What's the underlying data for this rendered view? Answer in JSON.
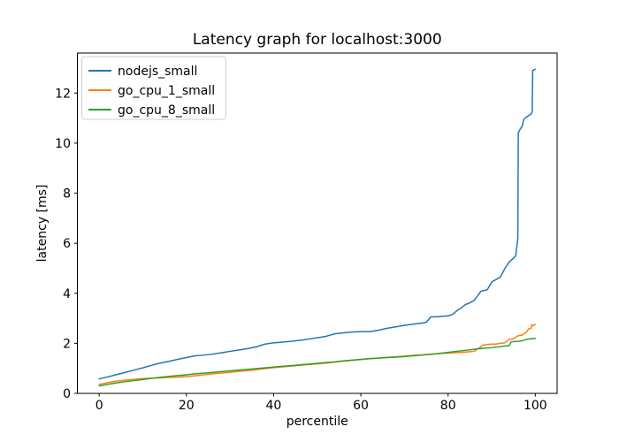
{
  "chart_data": {
    "type": "line",
    "title": "Latency graph for localhost:3000",
    "xlabel": "percentile",
    "ylabel": "latency [ms]",
    "xlim": [
      -5,
      105
    ],
    "ylim": [
      0,
      13.6
    ],
    "xticks": [
      0,
      20,
      40,
      60,
      80,
      100
    ],
    "yticks": [
      0,
      2,
      4,
      6,
      8,
      10,
      12
    ],
    "grid": false,
    "legend_position": "upper left",
    "legend_border_color": "#cccccc",
    "background_color": "#ffffff",
    "axis_color": "#000000",
    "series": [
      {
        "name": "nodejs_small",
        "color": "#1f77b4",
        "points": [
          [
            0,
            0.58
          ],
          [
            2,
            0.66
          ],
          [
            4,
            0.75
          ],
          [
            6,
            0.84
          ],
          [
            8,
            0.93
          ],
          [
            10,
            1.02
          ],
          [
            12,
            1.12
          ],
          [
            14,
            1.21
          ],
          [
            16,
            1.28
          ],
          [
            18,
            1.36
          ],
          [
            20,
            1.43
          ],
          [
            22,
            1.5
          ],
          [
            24,
            1.53
          ],
          [
            26,
            1.57
          ],
          [
            28,
            1.62
          ],
          [
            30,
            1.68
          ],
          [
            32,
            1.73
          ],
          [
            34,
            1.79
          ],
          [
            36,
            1.86
          ],
          [
            38,
            1.97
          ],
          [
            40,
            2.02
          ],
          [
            42,
            2.05
          ],
          [
            44,
            2.08
          ],
          [
            46,
            2.12
          ],
          [
            48,
            2.17
          ],
          [
            50,
            2.22
          ],
          [
            52,
            2.28
          ],
          [
            54,
            2.38
          ],
          [
            56,
            2.42
          ],
          [
            58,
            2.45
          ],
          [
            60,
            2.47
          ],
          [
            62,
            2.47
          ],
          [
            64,
            2.52
          ],
          [
            66,
            2.6
          ],
          [
            68,
            2.66
          ],
          [
            70,
            2.72
          ],
          [
            72,
            2.77
          ],
          [
            74,
            2.81
          ],
          [
            75,
            2.84
          ],
          [
            76,
            3.05
          ],
          [
            78,
            3.07
          ],
          [
            80,
            3.1
          ],
          [
            81,
            3.15
          ],
          [
            82,
            3.3
          ],
          [
            83,
            3.42
          ],
          [
            84,
            3.55
          ],
          [
            85,
            3.62
          ],
          [
            86,
            3.72
          ],
          [
            87,
            3.95
          ],
          [
            87.5,
            4.08
          ],
          [
            89,
            4.14
          ],
          [
            90,
            4.45
          ],
          [
            91,
            4.55
          ],
          [
            92,
            4.65
          ],
          [
            93,
            4.98
          ],
          [
            94,
            5.25
          ],
          [
            95,
            5.4
          ],
          [
            95.5,
            5.5
          ],
          [
            96,
            6.2
          ],
          [
            96.1,
            10.4
          ],
          [
            96.5,
            10.55
          ],
          [
            97,
            10.68
          ],
          [
            97.3,
            10.92
          ],
          [
            97.6,
            11.0
          ],
          [
            98,
            11.05
          ],
          [
            98.5,
            11.1
          ],
          [
            99,
            11.16
          ],
          [
            99.3,
            11.25
          ],
          [
            99.4,
            12.9
          ],
          [
            99.7,
            12.93
          ],
          [
            100,
            12.95
          ]
        ]
      },
      {
        "name": "go_cpu_1_small",
        "color": "#ff7f0e",
        "points": [
          [
            0,
            0.36
          ],
          [
            2,
            0.43
          ],
          [
            4,
            0.49
          ],
          [
            6,
            0.53
          ],
          [
            8,
            0.56
          ],
          [
            10,
            0.59
          ],
          [
            12,
            0.61
          ],
          [
            14,
            0.62
          ],
          [
            16,
            0.64
          ],
          [
            18,
            0.65
          ],
          [
            20,
            0.67
          ],
          [
            22,
            0.7
          ],
          [
            24,
            0.74
          ],
          [
            26,
            0.78
          ],
          [
            28,
            0.81
          ],
          [
            30,
            0.84
          ],
          [
            32,
            0.88
          ],
          [
            34,
            0.91
          ],
          [
            36,
            0.95
          ],
          [
            38,
            0.99
          ],
          [
            40,
            1.03
          ],
          [
            42,
            1.06
          ],
          [
            44,
            1.09
          ],
          [
            46,
            1.12
          ],
          [
            48,
            1.15
          ],
          [
            50,
            1.18
          ],
          [
            52,
            1.21
          ],
          [
            54,
            1.25
          ],
          [
            56,
            1.29
          ],
          [
            58,
            1.32
          ],
          [
            60,
            1.35
          ],
          [
            62,
            1.38
          ],
          [
            64,
            1.41
          ],
          [
            66,
            1.44
          ],
          [
            68,
            1.46
          ],
          [
            70,
            1.49
          ],
          [
            72,
            1.52
          ],
          [
            74,
            1.54
          ],
          [
            76,
            1.57
          ],
          [
            78,
            1.59
          ],
          [
            80,
            1.61
          ],
          [
            82,
            1.63
          ],
          [
            84,
            1.65
          ],
          [
            86,
            1.68
          ],
          [
            87,
            1.8
          ],
          [
            88,
            1.93
          ],
          [
            89,
            1.95
          ],
          [
            90,
            1.97
          ],
          [
            91,
            1.97
          ],
          [
            92,
            2.0
          ],
          [
            93,
            2.02
          ],
          [
            94,
            2.16
          ],
          [
            95,
            2.18
          ],
          [
            96,
            2.3
          ],
          [
            97,
            2.33
          ],
          [
            98,
            2.45
          ],
          [
            98.5,
            2.58
          ],
          [
            99,
            2.6
          ],
          [
            99.2,
            2.75
          ],
          [
            99.5,
            2.7
          ],
          [
            100,
            2.76
          ]
        ]
      },
      {
        "name": "go_cpu_8_small",
        "color": "#2ca02c",
        "points": [
          [
            0,
            0.3
          ],
          [
            2,
            0.36
          ],
          [
            4,
            0.42
          ],
          [
            6,
            0.47
          ],
          [
            8,
            0.51
          ],
          [
            10,
            0.55
          ],
          [
            12,
            0.6
          ],
          [
            14,
            0.64
          ],
          [
            16,
            0.68
          ],
          [
            18,
            0.71
          ],
          [
            20,
            0.74
          ],
          [
            22,
            0.78
          ],
          [
            24,
            0.81
          ],
          [
            26,
            0.84
          ],
          [
            28,
            0.87
          ],
          [
            30,
            0.9
          ],
          [
            32,
            0.93
          ],
          [
            34,
            0.96
          ],
          [
            36,
            0.99
          ],
          [
            38,
            1.02
          ],
          [
            40,
            1.05
          ],
          [
            42,
            1.08
          ],
          [
            44,
            1.11
          ],
          [
            46,
            1.14
          ],
          [
            48,
            1.17
          ],
          [
            50,
            1.2
          ],
          [
            52,
            1.23
          ],
          [
            54,
            1.26
          ],
          [
            56,
            1.3
          ],
          [
            58,
            1.33
          ],
          [
            60,
            1.36
          ],
          [
            62,
            1.39
          ],
          [
            64,
            1.41
          ],
          [
            66,
            1.43
          ],
          [
            68,
            1.45
          ],
          [
            70,
            1.47
          ],
          [
            72,
            1.5
          ],
          [
            74,
            1.53
          ],
          [
            76,
            1.56
          ],
          [
            78,
            1.6
          ],
          [
            80,
            1.64
          ],
          [
            82,
            1.68
          ],
          [
            84,
            1.72
          ],
          [
            86,
            1.76
          ],
          [
            88,
            1.8
          ],
          [
            90,
            1.83
          ],
          [
            92,
            1.87
          ],
          [
            93,
            1.89
          ],
          [
            94,
            1.91
          ],
          [
            94.5,
            2.06
          ],
          [
            96,
            2.08
          ],
          [
            97,
            2.1
          ],
          [
            98,
            2.16
          ],
          [
            99,
            2.18
          ],
          [
            100,
            2.2
          ]
        ]
      }
    ]
  }
}
